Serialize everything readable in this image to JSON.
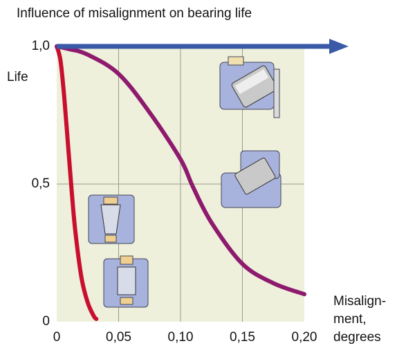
{
  "chart_data": {
    "type": "line",
    "title": "Influence of misalignment on bearing life",
    "y_label": "Life",
    "x_label": [
      "Misalign-",
      "ment,",
      "degrees"
    ],
    "xlim": [
      0,
      0.2
    ],
    "ylim": [
      0,
      1
    ],
    "xticks": [
      0,
      {
        "value": 0.05,
        "label": "0,05"
      },
      {
        "value": 0.1,
        "label": "0,10"
      },
      {
        "value": 0.15,
        "label": "0,15"
      },
      {
        "value": 0.2,
        "label": "0,20"
      }
    ],
    "yticks": [
      0,
      {
        "value": 0.5,
        "label": "0,5"
      },
      {
        "value": 1,
        "label": "1,0"
      }
    ],
    "grid": true,
    "series": [
      {
        "color": "#c8102e",
        "x": [
          0,
          0.003,
          0.006,
          0.009,
          0.012,
          0.015,
          0.02,
          0.025,
          0.03,
          0.032
        ],
        "values": [
          1,
          0.95,
          0.82,
          0.65,
          0.48,
          0.33,
          0.16,
          0.07,
          0.02,
          0.01
        ]
      },
      {
        "color": "#8e1a6e",
        "x": [
          0,
          0.01,
          0.025,
          0.05,
          0.075,
          0.1,
          0.11,
          0.125,
          0.15,
          0.175,
          0.2
        ],
        "values": [
          1,
          0.99,
          0.97,
          0.9,
          0.76,
          0.59,
          0.49,
          0.36,
          0.21,
          0.14,
          0.1
        ]
      }
    ]
  }
}
